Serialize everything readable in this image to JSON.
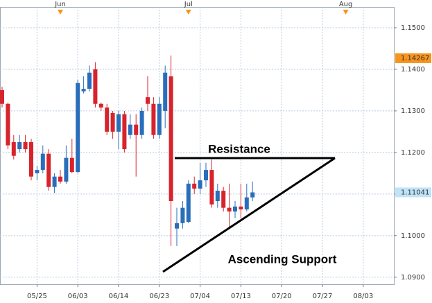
{
  "chart_data": {
    "type": "candlestick",
    "up_color": "#2a6ebb",
    "down_color": "#d7242c",
    "grid": true,
    "categories": [
      null,
      null,
      null,
      null,
      null,
      null,
      "05/25",
      null,
      null,
      null,
      null,
      null,
      null,
      "06/03",
      null,
      null,
      null,
      null,
      null,
      null,
      "06/14",
      null,
      null,
      null,
      null,
      null,
      null,
      "06/23",
      null,
      null,
      null,
      null,
      null,
      null,
      "07/04",
      null,
      null,
      null,
      null,
      null,
      null,
      "07/13",
      null,
      null,
      null,
      null,
      null,
      null,
      "07/20",
      null,
      null,
      null,
      null,
      null,
      null,
      "07/27",
      null,
      null,
      null,
      null,
      null,
      null,
      "08/03",
      null,
      null,
      null,
      null
    ],
    "months": [
      null,
      null,
      null,
      null,
      null,
      null,
      null,
      null,
      null,
      null,
      "Jun",
      null,
      null,
      null,
      null,
      null,
      null,
      null,
      null,
      null,
      null,
      null,
      null,
      null,
      null,
      null,
      null,
      null,
      null,
      null,
      null,
      null,
      "Jul",
      null,
      null,
      null,
      null,
      null,
      null,
      null,
      null,
      null,
      null,
      null,
      null,
      null,
      null,
      null,
      null,
      null,
      null,
      null,
      null,
      null,
      null,
      null,
      null,
      null,
      null,
      "Aug",
      null,
      null,
      null,
      null,
      null,
      null,
      null
    ],
    "open": [
      1.135,
      1.1317,
      1.1225,
      1.1208,
      1.1225,
      1.1225,
      1.115,
      1.1158,
      1.1197,
      1.1117,
      1.1142,
      1.113,
      1.1187,
      1.1153,
      1.1347,
      1.1353,
      1.14,
      1.1317,
      1.1308,
      1.1295,
      1.125,
      1.1292,
      1.1242,
      1.1267,
      1.1242,
      1.1333,
      1.1317,
      1.1242,
      1.13,
      1.1383,
      1.1017,
      1.103,
      1.1033,
      1.1125,
      1.1113,
      1.1133,
      1.1158,
      1.1083,
      1.1108,
      1.1067,
      1.1058,
      1.107,
      1.1063,
      1.1092,
      null,
      null,
      null,
      null,
      null,
      null,
      null,
      null,
      null,
      null,
      null,
      null,
      null,
      null,
      null,
      null,
      null,
      null,
      null,
      null,
      null,
      null,
      null
    ],
    "high": [
      1.1358,
      1.132,
      1.1242,
      1.1242,
      1.1242,
      1.1233,
      1.1167,
      1.1217,
      1.1208,
      1.115,
      1.1158,
      1.1217,
      1.1233,
      1.1375,
      1.1383,
      1.1409,
      1.1417,
      1.132,
      1.1317,
      1.13,
      1.13,
      1.13,
      1.1292,
      1.1292,
      1.1308,
      1.1383,
      1.1333,
      1.1333,
      1.1409,
      1.1433,
      1.1067,
      1.1083,
      1.1133,
      1.1142,
      1.1175,
      1.1175,
      1.1183,
      1.1125,
      1.1117,
      1.1125,
      1.1083,
      1.1125,
      1.1125,
      1.113,
      null,
      null,
      null,
      null,
      null,
      null,
      null,
      null,
      null,
      null,
      null,
      null,
      null,
      null,
      null,
      null,
      null,
      null,
      null,
      null,
      null,
      null,
      null
    ],
    "low": [
      1.1308,
      1.1208,
      1.1183,
      1.12,
      1.12,
      1.1133,
      1.1133,
      1.115,
      1.1108,
      1.1103,
      1.1125,
      1.1125,
      1.115,
      1.115,
      1.1342,
      1.1347,
      1.1308,
      1.13,
      1.1242,
      1.1233,
      1.1208,
      1.12,
      1.1233,
      1.1142,
      1.1233,
      1.13,
      1.1233,
      1.1233,
      1.1258,
      1.0975,
      1.0975,
      1.1017,
      1.103,
      1.11,
      1.11,
      1.1117,
      1.1067,
      1.1067,
      1.1058,
      1.1017,
      1.1042,
      1.1042,
      1.1058,
      1.1083,
      null,
      null,
      null,
      null,
      null,
      null,
      null,
      null,
      null,
      null,
      null,
      null,
      null,
      null,
      null,
      null,
      null,
      null,
      null,
      null,
      null,
      null,
      null
    ],
    "close": [
      1.1317,
      1.1217,
      1.1192,
      1.1225,
      1.1208,
      1.1142,
      1.1158,
      1.1197,
      1.1117,
      1.1142,
      1.113,
      1.1187,
      1.1153,
      1.1367,
      1.1353,
      1.1392,
      1.1317,
      1.1308,
      1.125,
      1.125,
      1.1292,
      1.1208,
      1.1267,
      1.1242,
      1.13,
      1.1317,
      1.1242,
      1.1317,
      1.1392,
      1.1083,
      1.103,
      1.1067,
      1.1125,
      1.1113,
      1.1133,
      1.1158,
      1.1075,
      1.1108,
      1.1067,
      1.1058,
      1.107,
      1.1063,
      1.1092,
      1.1104,
      null,
      null,
      null,
      null,
      null,
      null,
      null,
      null,
      null,
      null,
      null,
      null,
      null,
      null,
      null,
      null,
      null,
      null,
      null,
      null,
      null,
      null,
      null
    ],
    "ylim": [
      1.0883,
      1.155
    ],
    "yticks": [
      {
        "value": 1.09,
        "label": "1.0900"
      },
      {
        "value": 1.1,
        "label": "1.1000"
      },
      {
        "value": 1.11,
        "label": "1.1100"
      },
      {
        "value": 1.12,
        "label": "1.1200"
      },
      {
        "value": 1.13,
        "label": "1.1300"
      },
      {
        "value": 1.14,
        "label": "1.1400"
      },
      {
        "value": 1.15,
        "label": "1.1500"
      }
    ],
    "price_markers": [
      {
        "value": 1.14267,
        "color": "#f7941d"
      },
      {
        "value": 1.11041,
        "color": "#bfe3f7"
      }
    ],
    "annotations": [
      "Resistance",
      "Ascending Support"
    ]
  }
}
